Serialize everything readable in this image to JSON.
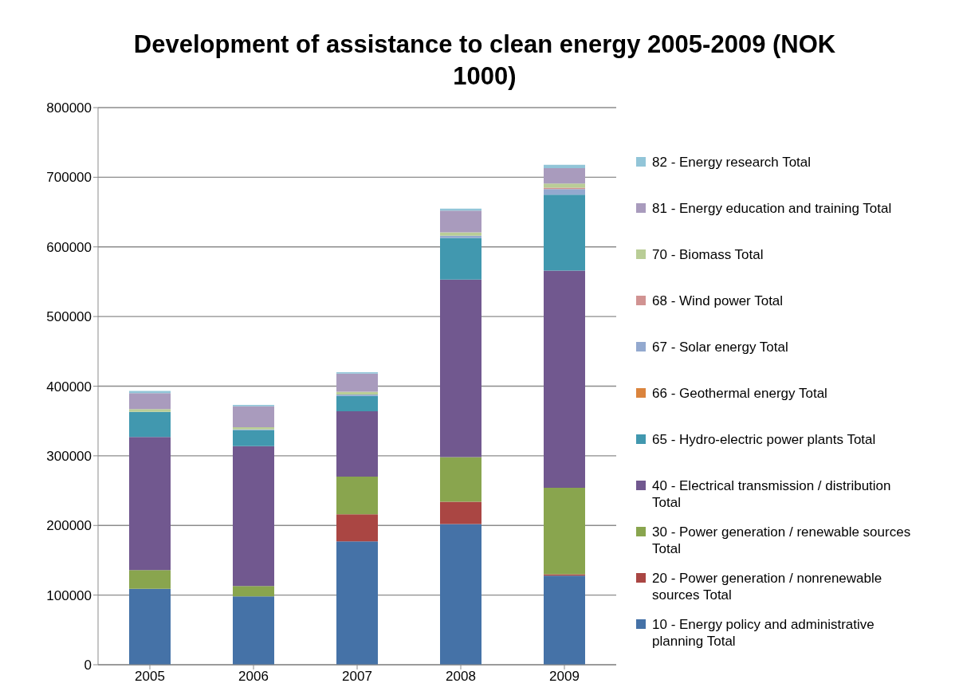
{
  "chart_data": {
    "type": "bar",
    "title": "Development of assistance to clean energy 2005-2009 (NOK 1000)",
    "categories": [
      "2005",
      "2006",
      "2007",
      "2008",
      "2009"
    ],
    "stacked": true,
    "ylim": [
      0,
      800000
    ],
    "yticks": [
      0,
      100000,
      200000,
      300000,
      400000,
      500000,
      600000,
      700000,
      800000
    ],
    "grid": "y",
    "legend": "right",
    "series": [
      {
        "name": "10 - Energy policy and administrative planning Total",
        "color": "#4572a7",
        "values": [
          109000,
          98000,
          177000,
          202000,
          128000
        ]
      },
      {
        "name": "20 - Power generation / nonrenewable sources Total",
        "color": "#aa4643",
        "values": [
          0,
          0,
          39000,
          32000,
          2000
        ]
      },
      {
        "name": "30 - Power generation / renewable sources Total",
        "color": "#89a54e",
        "values": [
          27000,
          15000,
          54000,
          64000,
          124000
        ]
      },
      {
        "name": "40 - Electrical transmission / distribution Total",
        "color": "#71588f",
        "values": [
          191000,
          201000,
          94000,
          255000,
          312000
        ]
      },
      {
        "name": "65 - Hydro-electric power plants  Total",
        "color": "#4198af",
        "values": [
          36000,
          23000,
          22000,
          60000,
          109000
        ]
      },
      {
        "name": "66 - Geothermal energy Total",
        "color": "#db843d",
        "values": [
          0,
          0,
          0,
          0,
          0
        ]
      },
      {
        "name": "67 - Solar energy Total",
        "color": "#93a9cf",
        "values": [
          0,
          1000,
          2000,
          3000,
          8000
        ]
      },
      {
        "name": "68 - Wind power Total",
        "color": "#d19392",
        "values": [
          0,
          0,
          0,
          0,
          2000
        ]
      },
      {
        "name": "70 - Biomass Total",
        "color": "#b9cd96",
        "values": [
          4000,
          3000,
          4000,
          5000,
          6000
        ]
      },
      {
        "name": "81 - Energy education and training Total",
        "color": "#a99bbd",
        "values": [
          23000,
          30000,
          26000,
          31000,
          22000
        ]
      },
      {
        "name": "82 - Energy research Total",
        "color": "#92c5d8",
        "values": [
          3000,
          2000,
          2000,
          3000,
          5000
        ]
      }
    ]
  }
}
